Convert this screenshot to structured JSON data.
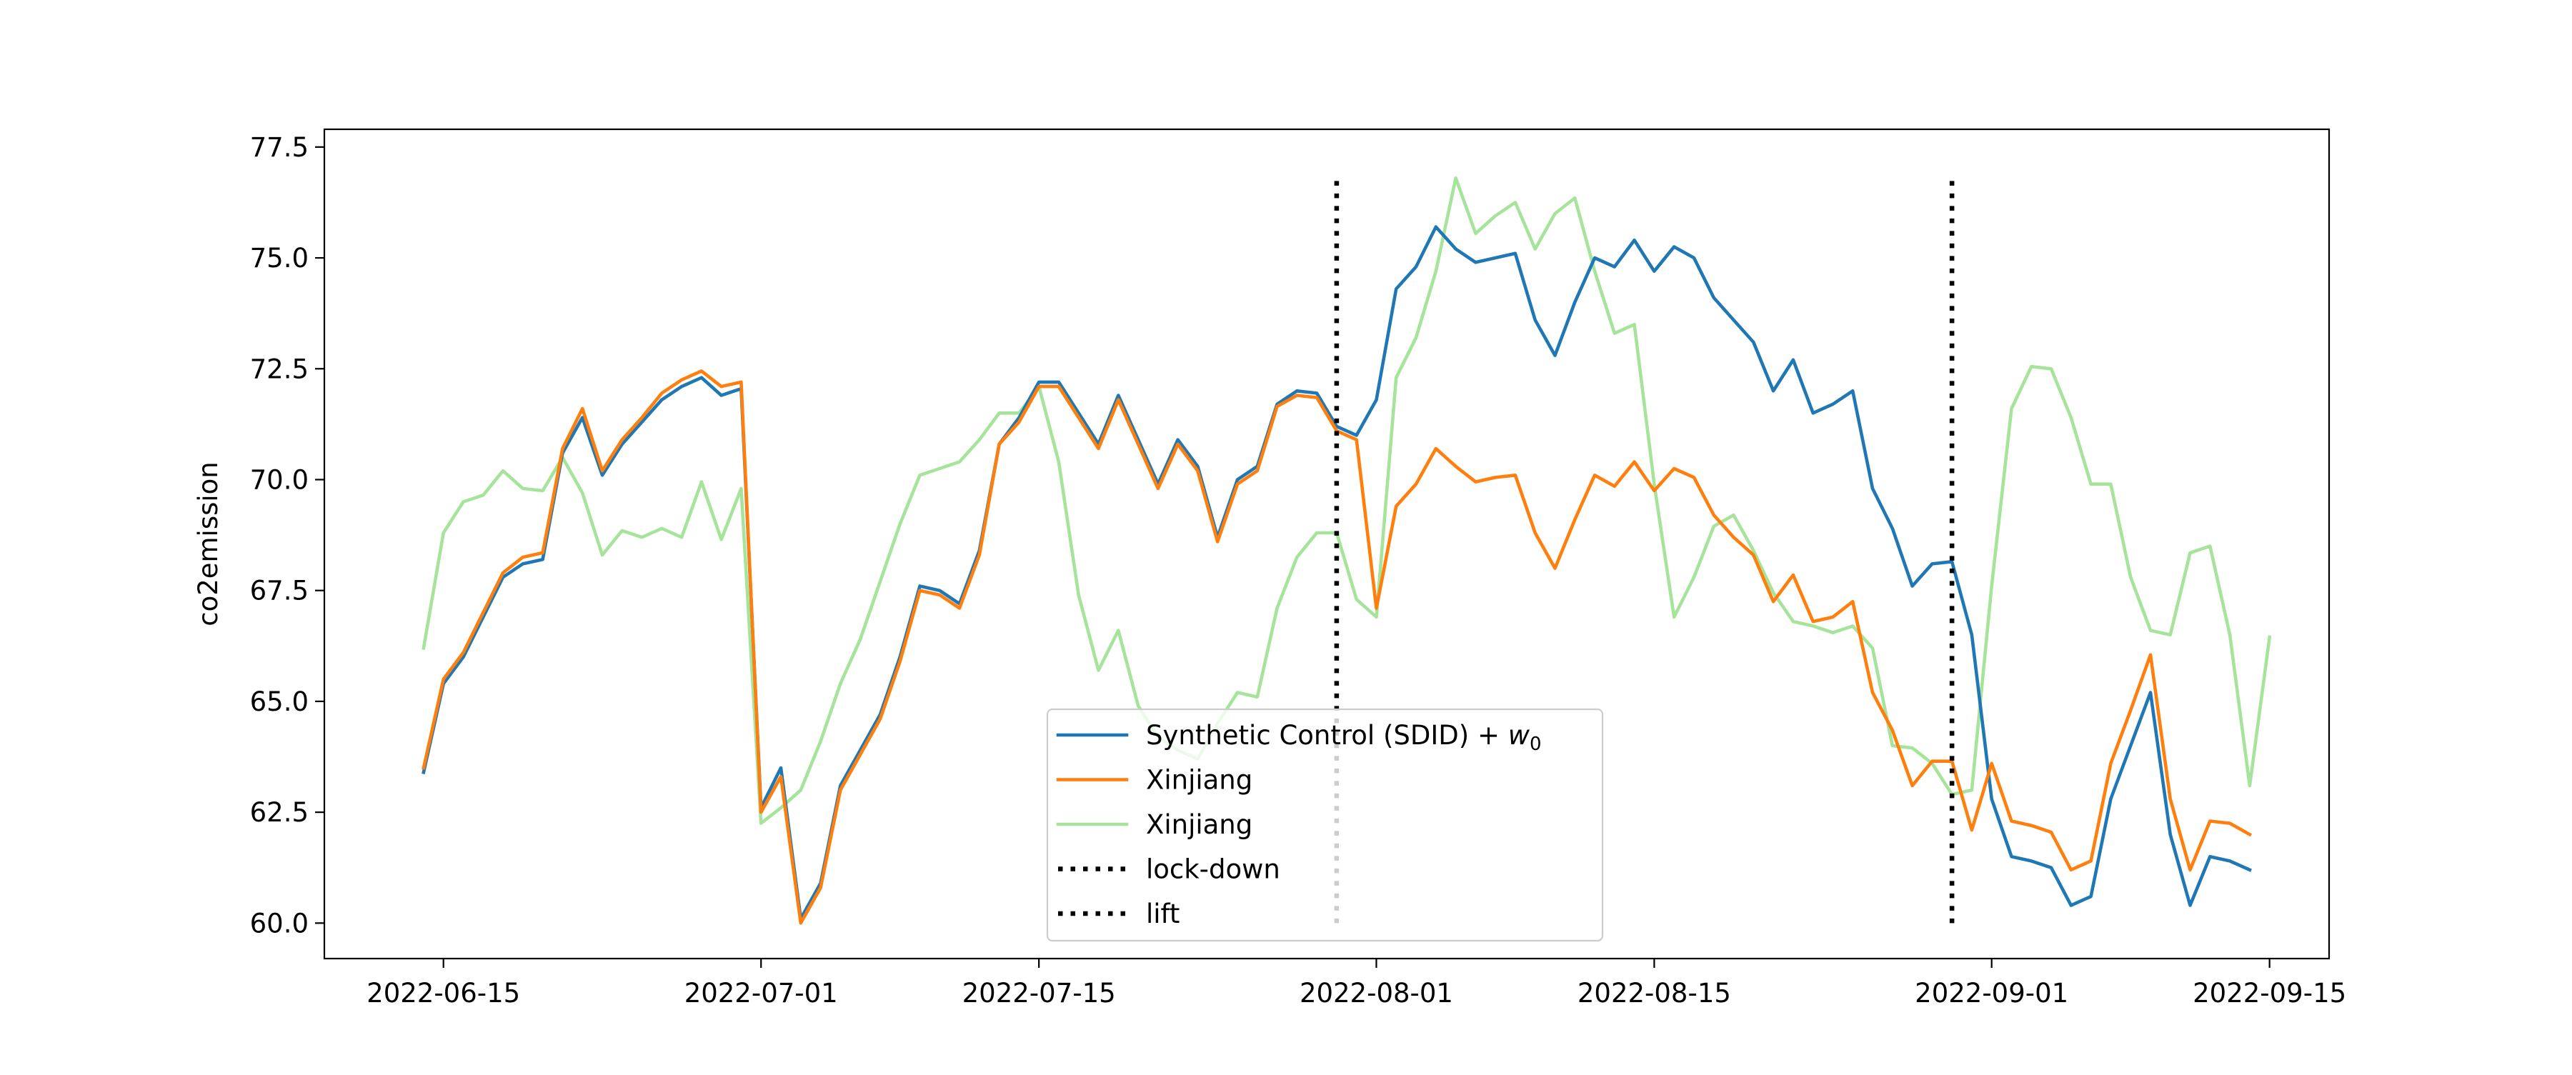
{
  "chart_data": {
    "type": "line",
    "title": "",
    "xlabel": "",
    "ylabel": "co2emission",
    "ylim": [
      59.2,
      77.9
    ],
    "xlim": [
      "2022-06-09",
      "2022-09-18"
    ],
    "grid": false,
    "legend_placement": "lower center",
    "x_ticks": [
      "2022-06-15",
      "2022-07-01",
      "2022-07-15",
      "2022-08-01",
      "2022-08-15",
      "2022-09-01",
      "2022-09-15"
    ],
    "y_ticks": [
      60.0,
      62.5,
      65.0,
      67.5,
      70.0,
      72.5,
      75.0,
      77.5
    ],
    "y_tick_labels": [
      "60.0",
      "62.5",
      "65.0",
      "67.5",
      "70.0",
      "72.5",
      "75.0",
      "77.5"
    ],
    "series": [
      {
        "name": "Synthetic Control (SDID) + w0",
        "legend_main": "Synthetic Control (SDID) + ",
        "legend_var": "w",
        "legend_sub": "0",
        "color": "#1f77b4",
        "opacity": 1.0,
        "start_date": "2022-06-14",
        "values": [
          63.4,
          65.4,
          66.0,
          66.9,
          67.8,
          68.1,
          68.2,
          70.6,
          71.4,
          70.1,
          70.8,
          71.3,
          71.8,
          72.1,
          72.3,
          71.9,
          72.05,
          62.6,
          63.5,
          60.1,
          60.9,
          63.1,
          63.9,
          64.7,
          66.0,
          67.6,
          67.5,
          67.2,
          68.4,
          70.8,
          71.4,
          72.2,
          72.2,
          71.5,
          70.8,
          71.9,
          70.9,
          69.9,
          70.9,
          70.3,
          68.7,
          70.0,
          70.3,
          71.7,
          72.0,
          71.95,
          71.2,
          71.0,
          71.8,
          74.3,
          74.8,
          75.7,
          75.2,
          74.9,
          75.0,
          75.1,
          73.6,
          72.8,
          74.0,
          75.0,
          74.8,
          75.4,
          74.7,
          75.25,
          75.0,
          74.1,
          73.6,
          73.1,
          72.0,
          72.7,
          71.5,
          71.7,
          72.0,
          69.8,
          68.9,
          67.6,
          68.1,
          68.15,
          66.5,
          62.8,
          61.5,
          61.4,
          61.25,
          60.4,
          60.6,
          62.8,
          64.0,
          65.2,
          62.0,
          60.4,
          61.5,
          61.4,
          61.2
        ]
      },
      {
        "name": "Xinjiang",
        "color": "#ff7f0e",
        "opacity": 1.0,
        "start_date": "2022-06-14",
        "values": [
          63.5,
          65.5,
          66.1,
          67.0,
          67.9,
          68.25,
          68.35,
          70.7,
          71.6,
          70.2,
          70.9,
          71.4,
          71.95,
          72.25,
          72.45,
          72.1,
          72.2,
          62.5,
          63.3,
          60.0,
          60.8,
          63.0,
          63.8,
          64.6,
          65.9,
          67.5,
          67.4,
          67.1,
          68.3,
          70.8,
          71.3,
          72.1,
          72.1,
          71.4,
          70.7,
          71.8,
          70.8,
          69.8,
          70.8,
          70.2,
          68.6,
          69.9,
          70.2,
          71.65,
          71.9,
          71.85,
          71.1,
          70.9,
          67.1,
          69.4,
          69.9,
          70.7,
          70.3,
          69.95,
          70.05,
          70.1,
          68.8,
          68.0,
          69.1,
          70.1,
          69.85,
          70.4,
          69.75,
          70.25,
          70.05,
          69.2,
          68.7,
          68.3,
          67.25,
          67.85,
          66.8,
          66.9,
          67.25,
          65.2,
          64.35,
          63.1,
          63.65,
          63.65,
          62.1,
          63.6,
          62.3,
          62.2,
          62.05,
          61.2,
          61.4,
          63.6,
          64.8,
          66.05,
          62.8,
          61.2,
          62.3,
          62.25,
          62.0
        ]
      },
      {
        "name": "Xinjiang",
        "color": "#98df8a",
        "opacity": 0.85,
        "start_date": "2022-06-14",
        "values": [
          66.2,
          68.8,
          69.5,
          69.65,
          70.2,
          69.8,
          69.75,
          70.5,
          69.7,
          68.3,
          68.85,
          68.7,
          68.9,
          68.7,
          69.95,
          68.65,
          69.8,
          62.25,
          62.6,
          63.0,
          64.1,
          65.4,
          66.4,
          67.7,
          69.0,
          70.1,
          70.25,
          70.4,
          70.9,
          71.5,
          71.5,
          72.1,
          70.4,
          67.4,
          65.7,
          66.6,
          64.9,
          64.2,
          63.9,
          63.7,
          64.5,
          65.2,
          65.1,
          67.1,
          68.25,
          68.8,
          68.8,
          67.3,
          66.9,
          72.3,
          73.2,
          74.7,
          76.8,
          75.55,
          75.95,
          76.25,
          75.2,
          76.0,
          76.35,
          74.7,
          73.3,
          73.5,
          69.9,
          66.9,
          67.8,
          68.95,
          69.2,
          68.4,
          67.45,
          66.8,
          66.7,
          66.55,
          66.7,
          66.2,
          64.0,
          63.95,
          63.6,
          62.9,
          63.0,
          67.6,
          71.6,
          72.55,
          72.5,
          71.4,
          69.9,
          69.9,
          67.8,
          66.6,
          66.5,
          68.35,
          68.5,
          66.5,
          63.1,
          66.45
        ]
      }
    ],
    "vlines": [
      {
        "name": "lock-down",
        "date": "2022-07-30",
        "y_range": [
          60.0,
          76.8
        ],
        "color": "#000000"
      },
      {
        "name": "lift",
        "date": "2022-08-30",
        "y_range": [
          60.0,
          76.8
        ],
        "color": "#000000"
      }
    ]
  }
}
